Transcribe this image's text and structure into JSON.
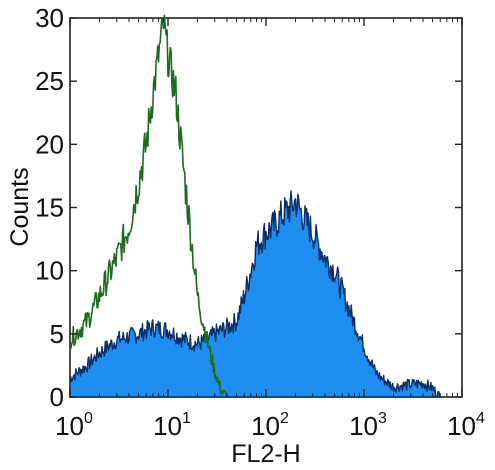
{
  "chart_data": {
    "type": "area",
    "xlabel": "FL2-H",
    "ylabel": "Counts",
    "xscale": "log",
    "xlim": [
      1,
      10000
    ],
    "ylim": [
      0,
      30
    ],
    "grid": false,
    "xticks": [
      {
        "value": 1,
        "base": "10",
        "exp": "0"
      },
      {
        "value": 10,
        "base": "10",
        "exp": "1"
      },
      {
        "value": 100,
        "base": "10",
        "exp": "2"
      },
      {
        "value": 1000,
        "base": "10",
        "exp": "3"
      },
      {
        "value": 10000,
        "base": "10",
        "exp": "4"
      }
    ],
    "yticks": [
      0,
      5,
      10,
      15,
      20,
      25,
      30
    ],
    "series": [
      {
        "style": "outline",
        "color": "#1e6b1e",
        "x": [
          1,
          1.5,
          2,
          3,
          4,
          5,
          6,
          7,
          8,
          9,
          10,
          12,
          14,
          17,
          20,
          25,
          30,
          35,
          40
        ],
        "y": [
          4.5,
          6,
          8,
          11,
          13.5,
          17,
          20,
          24,
          27,
          29.5,
          27,
          24,
          19,
          13,
          8,
          4.5,
          2,
          0.5,
          0
        ]
      },
      {
        "style": "filled",
        "color": "#1e8ef0",
        "edge": "#0a2f6a",
        "x": [
          1,
          1.5,
          2,
          3,
          5,
          7,
          10,
          14,
          20,
          25,
          30,
          40,
          50,
          60,
          70,
          80,
          100,
          120,
          150,
          180,
          200,
          250,
          300,
          400,
          500,
          700,
          1000,
          1300,
          1500,
          2000,
          3000,
          4000,
          5000,
          6000
        ],
        "y": [
          1.5,
          2.5,
          3.5,
          4.5,
          5,
          5.5,
          5.3,
          4.6,
          4.2,
          4.5,
          5,
          5.5,
          6,
          8,
          10,
          12,
          13,
          13.5,
          14.5,
          15,
          15.5,
          14,
          13,
          11,
          10,
          7,
          4,
          2,
          1.5,
          0.8,
          1,
          1.1,
          0.7,
          0
        ]
      }
    ]
  }
}
